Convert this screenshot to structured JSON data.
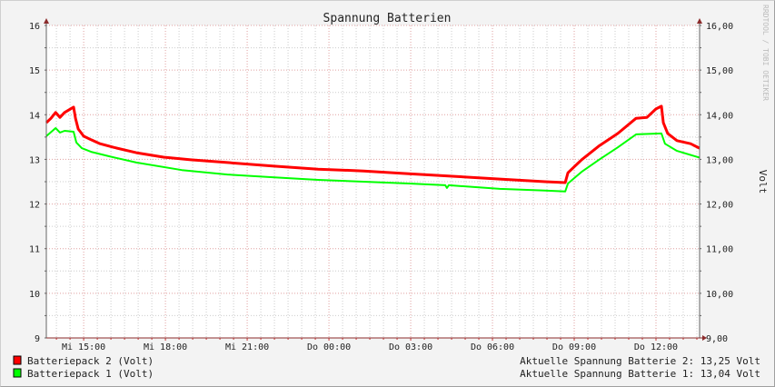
{
  "chart_data": {
    "type": "line",
    "title": "Spannung Batterien",
    "ylabel": "Volt",
    "watermark": "RRDTOOL / TOBI OETIKER",
    "ylim": [
      9,
      16
    ],
    "xlim_hours_from_mi_1500": [
      -1.37,
      22.6
    ],
    "y_ticks_left": [
      "9",
      "10",
      "11",
      "12",
      "13",
      "14",
      "15",
      "16"
    ],
    "y_ticks_right": [
      "9,00",
      "10,00",
      "11,00",
      "12,00",
      "13,00",
      "14,00",
      "15,00",
      "16,00"
    ],
    "x_ticks": [
      {
        "label": "Mi 15:00",
        "hour": 0
      },
      {
        "label": "Mi 18:00",
        "hour": 3
      },
      {
        "label": "Mi 21:00",
        "hour": 6
      },
      {
        "label": "Do 00:00",
        "hour": 9
      },
      {
        "label": "Do 03:00",
        "hour": 12
      },
      {
        "label": "Do 06:00",
        "hour": 15
      },
      {
        "label": "Do 09:00",
        "hour": 18
      },
      {
        "label": "Do 12:00",
        "hour": 21
      }
    ],
    "grid": true,
    "legend_position": "bottom",
    "series": [
      {
        "name": "Batteriepack 2 (Volt)",
        "color": "#ff0000",
        "current_label": "Aktuelle Spannung Batterie 2: 13,25 Volt",
        "points": [
          [
            -1.37,
            13.82
          ],
          [
            -1.2,
            13.92
          ],
          [
            -1.03,
            14.05
          ],
          [
            -0.87,
            13.94
          ],
          [
            -0.7,
            14.05
          ],
          [
            -0.37,
            14.17
          ],
          [
            -0.3,
            13.92
          ],
          [
            -0.2,
            13.68
          ],
          [
            0,
            13.52
          ],
          [
            0.27,
            13.44
          ],
          [
            0.6,
            13.35
          ],
          [
            1.1,
            13.27
          ],
          [
            1.93,
            13.15
          ],
          [
            2.93,
            13.05
          ],
          [
            3.93,
            12.99
          ],
          [
            5.27,
            12.93
          ],
          [
            6.93,
            12.85
          ],
          [
            8.6,
            12.78
          ],
          [
            10.27,
            12.74
          ],
          [
            11.93,
            12.68
          ],
          [
            13.6,
            12.62
          ],
          [
            15.27,
            12.56
          ],
          [
            16.93,
            12.5
          ],
          [
            17.67,
            12.48
          ],
          [
            17.77,
            12.7
          ],
          [
            18.27,
            12.99
          ],
          [
            18.93,
            13.31
          ],
          [
            19.6,
            13.58
          ],
          [
            20.27,
            13.92
          ],
          [
            20.67,
            13.94
          ],
          [
            21,
            14.13
          ],
          [
            21.2,
            14.19
          ],
          [
            21.27,
            13.82
          ],
          [
            21.43,
            13.58
          ],
          [
            21.77,
            13.42
          ],
          [
            22.27,
            13.35
          ],
          [
            22.6,
            13.25
          ]
        ]
      },
      {
        "name": "Batteriepack 1 (Volt)",
        "color": "#00ff00",
        "current_label": "Aktuelle Spannung Batterie 1: 13,04 Volt",
        "points": [
          [
            -1.37,
            13.52
          ],
          [
            -1.03,
            13.7
          ],
          [
            -0.87,
            13.6
          ],
          [
            -0.7,
            13.64
          ],
          [
            -0.37,
            13.62
          ],
          [
            -0.27,
            13.38
          ],
          [
            -0.07,
            13.25
          ],
          [
            0.27,
            13.17
          ],
          [
            0.93,
            13.07
          ],
          [
            1.93,
            12.93
          ],
          [
            3.6,
            12.76
          ],
          [
            5.27,
            12.66
          ],
          [
            6.93,
            12.6
          ],
          [
            8.6,
            12.54
          ],
          [
            10.27,
            12.5
          ],
          [
            11.93,
            12.46
          ],
          [
            13.27,
            12.42
          ],
          [
            13.33,
            12.36
          ],
          [
            13.4,
            12.42
          ],
          [
            15.27,
            12.34
          ],
          [
            16.93,
            12.3
          ],
          [
            17.67,
            12.28
          ],
          [
            17.77,
            12.46
          ],
          [
            18.27,
            12.72
          ],
          [
            18.93,
            13.0
          ],
          [
            19.6,
            13.27
          ],
          [
            20.27,
            13.56
          ],
          [
            21.2,
            13.58
          ],
          [
            21.33,
            13.35
          ],
          [
            21.77,
            13.19
          ],
          [
            22.6,
            13.04
          ]
        ]
      }
    ]
  }
}
